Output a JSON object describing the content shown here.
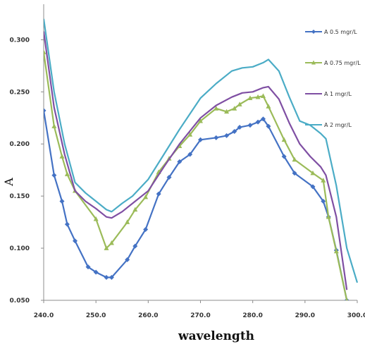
{
  "chart_data": {
    "type": "line",
    "title": "",
    "xlabel": "wavelength",
    "ylabel": "A",
    "xlim": [
      240.0,
      300.0
    ],
    "ylim": [
      0.05,
      0.33
    ],
    "x_ticks": [
      "240.0",
      "250.0",
      "260.0",
      "270.0",
      "280.0",
      "290.0",
      "300.0"
    ],
    "y_ticks": [
      "0.050",
      "0.100",
      "0.150",
      "0.200",
      "0.250",
      "0.300"
    ],
    "grid": false,
    "legend_position": "top-right",
    "series": [
      {
        "name": "A 0.5 mgr/L",
        "color": "#4472c4",
        "marker": "diamond",
        "x": [
          240.0,
          242.0,
          243.5,
          244.5,
          246.0,
          248.5,
          250.0,
          252.0,
          253.0,
          256.0,
          257.5,
          259.5,
          262.0,
          264.0,
          266.0,
          268.0,
          270.0,
          273.0,
          275.0,
          276.5,
          277.5,
          279.5,
          281.0,
          282.0,
          283.0,
          286.0,
          288.0,
          291.5,
          293.5,
          294.5,
          296.0,
          298.0
        ],
        "y": [
          0.232,
          0.17,
          0.145,
          0.123,
          0.107,
          0.082,
          0.077,
          0.072,
          0.072,
          0.089,
          0.102,
          0.118,
          0.152,
          0.168,
          0.183,
          0.19,
          0.204,
          0.206,
          0.208,
          0.212,
          0.216,
          0.218,
          0.221,
          0.224,
          0.217,
          0.188,
          0.172,
          0.159,
          0.145,
          0.13,
          0.098,
          0.05
        ]
      },
      {
        "name": "A 0.75 mgr/L",
        "color": "#9bbb59",
        "marker": "triangle",
        "x": [
          240.0,
          242.0,
          243.5,
          244.5,
          246.0,
          250.0,
          252.0,
          253.0,
          256.0,
          257.5,
          259.5,
          262.0,
          264.0,
          266.0,
          268.0,
          270.0,
          273.0,
          275.0,
          276.5,
          277.5,
          279.5,
          281.0,
          282.0,
          283.0,
          286.0,
          288.0,
          291.5,
          293.5,
          294.5,
          296.0,
          298.0
        ],
        "y": [
          0.288,
          0.217,
          0.188,
          0.171,
          0.155,
          0.128,
          0.1,
          0.105,
          0.125,
          0.137,
          0.149,
          0.173,
          0.186,
          0.198,
          0.209,
          0.222,
          0.234,
          0.231,
          0.234,
          0.238,
          0.244,
          0.245,
          0.246,
          0.236,
          0.204,
          0.185,
          0.172,
          0.165,
          0.13,
          0.097,
          0.05
        ]
      },
      {
        "name": "A 1 mgr/L",
        "color": "#7f4fa3",
        "marker": "none",
        "x": [
          240.0,
          242.0,
          244.0,
          246.0,
          248.0,
          250.0,
          252.0,
          253.0,
          255.0,
          257.0,
          260.0,
          263.0,
          266.0,
          270.0,
          273.0,
          276.0,
          278.0,
          280.0,
          282.0,
          283.0,
          285.0,
          287.0,
          289.0,
          291.0,
          293.0,
          294.0,
          296.0,
          298.0
        ],
        "y": [
          0.308,
          0.235,
          0.19,
          0.155,
          0.145,
          0.138,
          0.13,
          0.129,
          0.135,
          0.143,
          0.155,
          0.178,
          0.2,
          0.225,
          0.237,
          0.245,
          0.249,
          0.25,
          0.254,
          0.255,
          0.243,
          0.22,
          0.2,
          0.188,
          0.178,
          0.17,
          0.13,
          0.06
        ]
      },
      {
        "name": "A 2 mgr/L",
        "color": "#4bacc6",
        "marker": "none",
        "x": [
          240.0,
          242.0,
          244.0,
          246.0,
          248.0,
          250.0,
          252.0,
          253.0,
          255.0,
          257.0,
          260.0,
          263.0,
          266.0,
          270.0,
          273.0,
          276.0,
          278.0,
          280.0,
          282.0,
          283.0,
          285.0,
          287.0,
          289.0,
          291.0,
          293.0,
          294.0,
          296.0,
          298.0,
          300.0
        ],
        "y": [
          0.32,
          0.25,
          0.2,
          0.163,
          0.153,
          0.145,
          0.137,
          0.135,
          0.143,
          0.15,
          0.166,
          0.19,
          0.214,
          0.244,
          0.258,
          0.27,
          0.273,
          0.274,
          0.278,
          0.281,
          0.27,
          0.245,
          0.222,
          0.218,
          0.21,
          0.205,
          0.16,
          0.1,
          0.067
        ]
      }
    ]
  }
}
